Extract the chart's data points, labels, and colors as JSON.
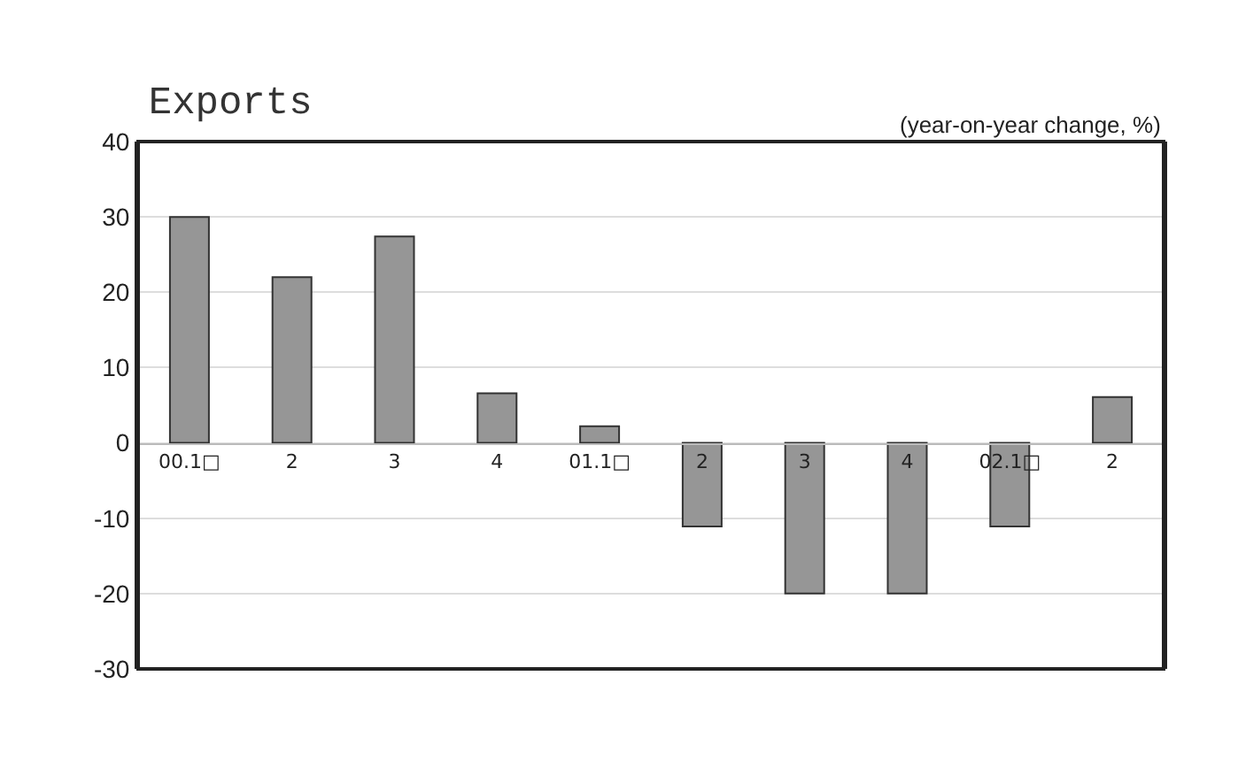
{
  "chart_data": {
    "type": "bar",
    "title": "Exports",
    "ylabel": "(year-on-year change, %)",
    "categories": [
      "00.1□",
      "2",
      "3",
      "4",
      "01.1□",
      "2",
      "3",
      "4",
      "02.1□",
      "2"
    ],
    "values": [
      30,
      22,
      27.4,
      6.6,
      2.2,
      -11.1,
      -20,
      -20,
      -11.1,
      6.1
    ],
    "color": "#969696",
    "ylim": [
      -30,
      40
    ],
    "yticks": [
      -30,
      -20,
      -10,
      0,
      10,
      20,
      30,
      40
    ],
    "grid": "y",
    "legend": false
  }
}
